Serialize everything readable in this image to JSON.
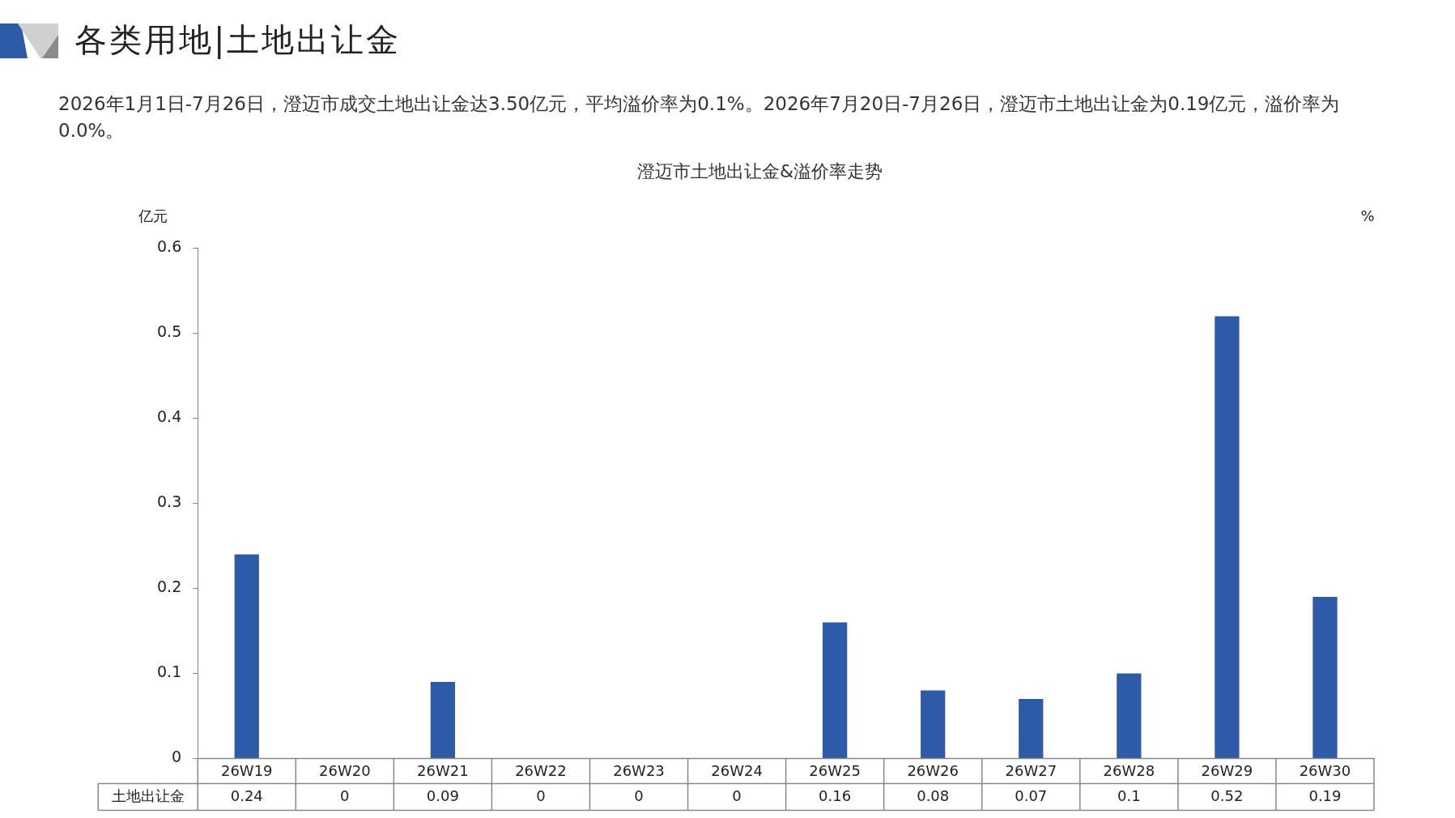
{
  "chart_data": {
    "type": "bar",
    "title": "澄迈市土地出让金&溢价率走势",
    "ylabel": "亿元",
    "y2label": "%",
    "annotations": [
      "各类用地|土地出让金",
      "2026年1月1日-7月26日，澄迈市成交土地出让金达3.50亿元，平均溢价率为0.1%。2026年7月20日-7月26日，澄迈市土地出让金为0.19亿元，溢价率为0.0%。"
    ],
    "categories": [
      "26W19",
      "26W20",
      "26W21",
      "26W22",
      "26W23",
      "26W24",
      "26W25",
      "26W26",
      "26W27",
      "26W28",
      "26W29",
      "26W30"
    ],
    "series": [
      {
        "name": "土地出让金",
        "color": "#2e5ba8",
        "values": [
          0.24,
          0,
          0.09,
          0,
          0,
          0,
          0.16,
          0.08,
          0.07,
          0.1,
          0.52,
          0.19
        ]
      }
    ],
    "ylim": [
      0,
      0.6
    ],
    "yticks": [
      0,
      0.1,
      0.2,
      0.3,
      0.4,
      0.5,
      0.6
    ],
    "grid": false,
    "legend": false,
    "data_labels": true
  }
}
